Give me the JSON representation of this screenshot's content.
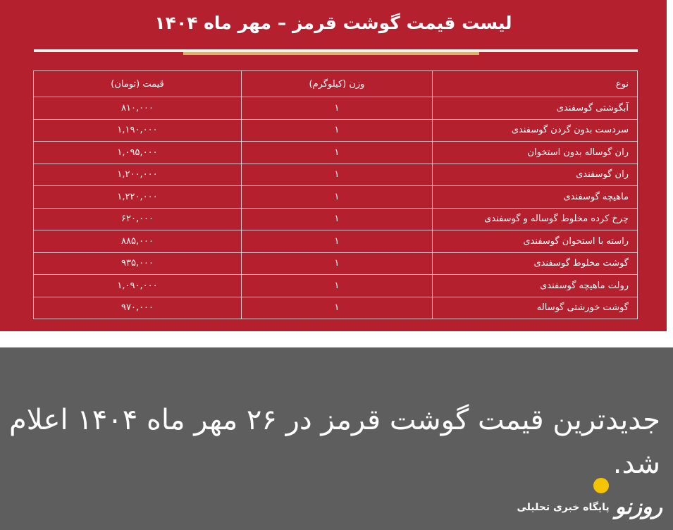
{
  "poster": {
    "title": "لیست قیمت گوشت قرمز – مهر ماه ۱۴۰۴"
  },
  "table": {
    "header": [
      "نوع",
      "وزن (کیلوگرم)",
      "قیمت (تومان)"
    ],
    "rows": [
      [
        "آبگوشتی گوسفندی",
        "۱",
        "۸۱۰,۰۰۰"
      ],
      [
        "سردست بدون گردن گوسفندی",
        "۱",
        "۱,۱۹۰,۰۰۰"
      ],
      [
        "ران گوساله بدون استخوان",
        "۱",
        "۱,۰۹۵,۰۰۰"
      ],
      [
        "ران گوسفندی",
        "۱",
        "۱,۲۰۰,۰۰۰"
      ],
      [
        "ماهیچه گوسفندی",
        "۱",
        "۱,۲۲۰,۰۰۰"
      ],
      [
        "چرخ کرده مخلوط گوساله و گوسفندی",
        "۱",
        "۶۲۰,۰۰۰"
      ],
      [
        "راسته با استخوان گوسفندی",
        "۱",
        "۸۸۵,۰۰۰"
      ],
      [
        "گوشت مخلوط گوسفندی",
        "۱",
        "۹۳۵,۰۰۰"
      ],
      [
        "رولت ماهیچه گوسفندی",
        "۱",
        "۱,۰۹۰,۰۰۰"
      ],
      [
        "گوشت خورشتی گوساله",
        "۱",
        "۹۷۰,۰۰۰"
      ]
    ]
  },
  "caption": {
    "headline": "جدیدترین قیمت گوشت قرمز در ۲۶ مهر ماه ۱۴۰۴ اعلام شد.",
    "logo": "روزنو",
    "tagline": "پایگاه خبری تحلیلی"
  }
}
